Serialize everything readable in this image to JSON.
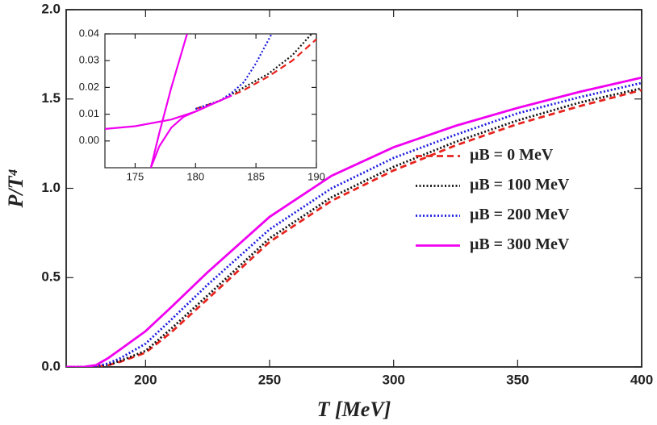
{
  "chart_data": [
    {
      "type": "line",
      "xlabel": "T [MeV]",
      "ylabel": "P/T⁴",
      "xlim": [
        168,
        400
      ],
      "ylim": [
        0,
        2
      ],
      "xticks": [
        200,
        250,
        300,
        350,
        400
      ],
      "yticks": [
        {
          "value": 0,
          "label": "0.0"
        },
        {
          "value": 0.5,
          "label": "0.5"
        },
        {
          "value": 1,
          "label": "1.0"
        },
        {
          "value": 1.5,
          "label": "1.5"
        },
        {
          "value": 2,
          "label": "2.0"
        }
      ],
      "legend": "right",
      "x": [
        168,
        175,
        180,
        185,
        190,
        200,
        210,
        225,
        250,
        275,
        300,
        325,
        350,
        375,
        400
      ],
      "series": [
        {
          "name": "μB = 0 MeV",
          "color": "#e8231e",
          "dash": "dashed",
          "values": [
            0,
            0,
            0.002,
            0.01,
            0.03,
            0.08,
            0.19,
            0.38,
            0.7,
            0.93,
            1.1,
            1.24,
            1.36,
            1.46,
            1.55
          ]
        },
        {
          "name": "μB = 100 MeV",
          "color": "#111111",
          "dash": "dotted",
          "values": [
            0,
            0,
            0.002,
            0.012,
            0.035,
            0.09,
            0.21,
            0.4,
            0.72,
            0.95,
            1.12,
            1.26,
            1.38,
            1.48,
            1.56
          ]
        },
        {
          "name": "μB = 200 MeV",
          "color": "#1a1ae0",
          "dash": "dotted",
          "values": [
            0,
            0,
            0.003,
            0.02,
            0.05,
            0.13,
            0.26,
            0.46,
            0.77,
            1.0,
            1.17,
            1.3,
            1.42,
            1.51,
            1.59
          ]
        },
        {
          "name": "μB = 300 MeV",
          "color": "#f000f0",
          "dash": "solid",
          "values": [
            0,
            0,
            0.01,
            0.05,
            0.1,
            0.2,
            0.33,
            0.53,
            0.84,
            1.07,
            1.23,
            1.35,
            1.45,
            1.54,
            1.62
          ]
        }
      ]
    },
    {
      "type": "line",
      "xlim": [
        172.5,
        190
      ],
      "ylim": [
        -0.01,
        0.04
      ],
      "xticks": [
        175,
        180,
        185,
        190
      ],
      "yticks": [
        {
          "value": 0,
          "label": "0.00"
        },
        {
          "value": 0.01,
          "label": "0.01"
        },
        {
          "value": 0.02,
          "label": "0.02"
        },
        {
          "value": 0.03,
          "label": "0.03"
        },
        {
          "value": 0.04,
          "label": "0.04"
        }
      ],
      "series": [
        {
          "color": "#e8231e",
          "dash": "dashed",
          "x": [
            180,
            182,
            184,
            186,
            188,
            190
          ],
          "values": [
            0.012,
            0.015,
            0.019,
            0.024,
            0.03,
            0.038
          ]
        },
        {
          "color": "#111111",
          "dash": "dotted",
          "x": [
            180,
            182,
            184,
            186,
            188,
            189.6
          ],
          "values": [
            0.012,
            0.015,
            0.02,
            0.025,
            0.032,
            0.04
          ]
        },
        {
          "color": "#1a1ae0",
          "dash": "dotted",
          "x": [
            180,
            182,
            183,
            184,
            185,
            186.3
          ],
          "values": [
            0.012,
            0.015,
            0.018,
            0.022,
            0.029,
            0.04
          ]
        },
        {
          "color": "#f000f0",
          "dash": "solid",
          "x": [
            172.5,
            175,
            178,
            180,
            181,
            182,
            183
          ],
          "values": [
            0.0045,
            0.0055,
            0.008,
            0.011,
            0.013,
            0.015,
            0.017
          ]
        },
        {
          "color": "#f000f0",
          "dash": "solid",
          "x": [
            176.3,
            177,
            178,
            179,
            180,
            181
          ],
          "values": [
            -0.01,
            -0.002,
            0.005,
            0.009,
            0.011,
            0.013
          ]
        },
        {
          "color": "#f000f0",
          "dash": "solid",
          "x": [
            176.3,
            177,
            178,
            179.3
          ],
          "values": [
            -0.01,
            0.003,
            0.02,
            0.04
          ]
        }
      ]
    }
  ]
}
